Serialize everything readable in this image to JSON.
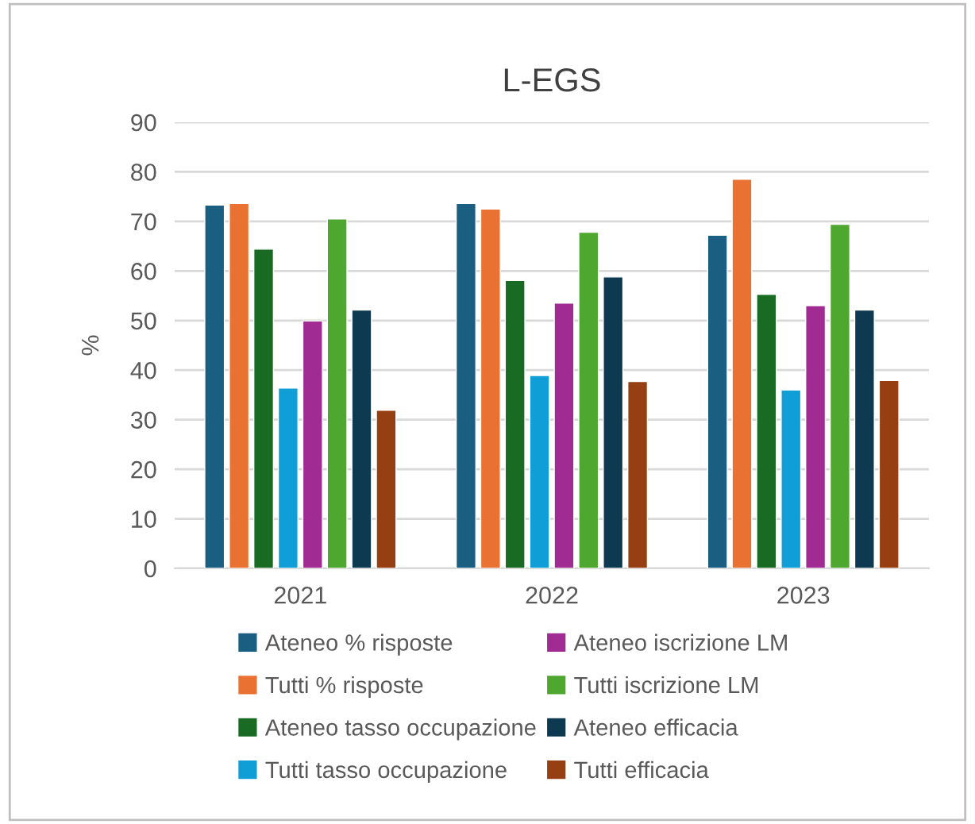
{
  "chart_data": {
    "type": "bar",
    "title": "L-EGS",
    "ylabel": "%",
    "categories": [
      "2021",
      "2022",
      "2023"
    ],
    "series": [
      {
        "name": "Ateneo % risposte",
        "color": "#1a5e82",
        "values": [
          73.3,
          73.6,
          67.2
        ]
      },
      {
        "name": "Tutti % risposte",
        "color": "#e97132",
        "values": [
          73.6,
          72.5,
          78.5
        ]
      },
      {
        "name": "Ateneo tasso occupazione",
        "color": "#196b24",
        "values": [
          64.4,
          58.1,
          55.3
        ]
      },
      {
        "name": "Tutti tasso occupazione",
        "color": "#0f9ed5",
        "values": [
          36.4,
          38.9,
          36.0
        ]
      },
      {
        "name": "Ateneo iscrizione LM",
        "color": "#a02b93",
        "values": [
          49.9,
          53.5,
          53.0
        ]
      },
      {
        "name": "Tutti iscrizione LM",
        "color": "#4ea72e",
        "values": [
          70.5,
          67.8,
          69.4
        ]
      },
      {
        "name": "Ateneo efficacia",
        "color": "#0e3a51",
        "values": [
          52.1,
          58.8,
          52.1
        ]
      },
      {
        "name": "Tutti efficacia",
        "color": "#963f12",
        "values": [
          31.9,
          37.7,
          37.9
        ]
      }
    ],
    "ylim": [
      0,
      90
    ],
    "yticks": [
      0,
      10,
      20,
      30,
      40,
      50,
      60,
      70,
      80,
      90
    ],
    "grid": "y",
    "legend": "bottom"
  }
}
